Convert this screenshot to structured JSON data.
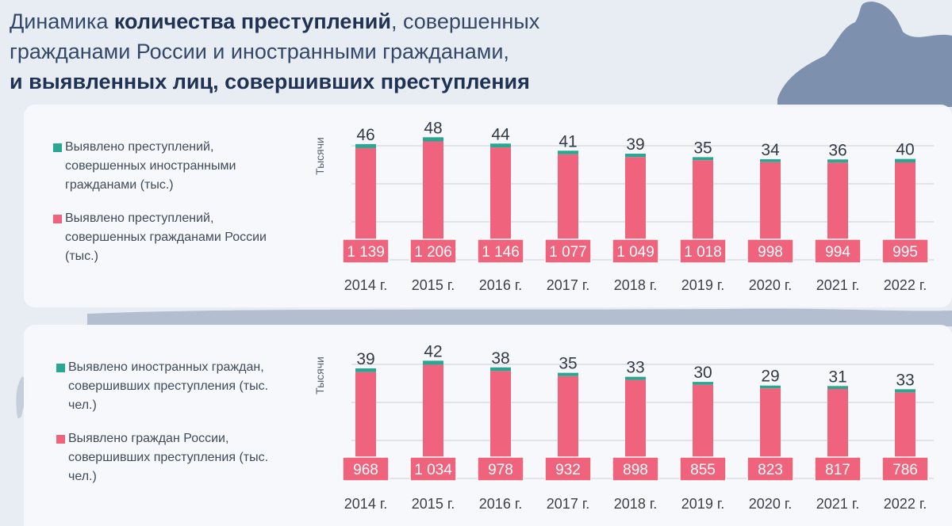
{
  "title": {
    "line1_normal": "Динамика ",
    "line1_bold": "количества преступлений",
    "line1_rest": ", совершенных",
    "line2": "гражданами России и иностранными гражданами,",
    "line3_bold": "и выявленных лиц, совершивших преступления"
  },
  "colors": {
    "foreign": "#2aa791",
    "russian": "#f0637d",
    "label_text": "#ffffff",
    "grid": "#c9cfd8"
  },
  "chart_data": [
    {
      "type": "bar",
      "stacked": true,
      "ylabel": "Тысячи",
      "categories": [
        "2014 г.",
        "2015 г.",
        "2016 г.",
        "2017 г.",
        "2018 г.",
        "2019 г.",
        "2020 г.",
        "2021 г.",
        "2022 г."
      ],
      "series": [
        {
          "name": "Выявлено преступлений, совершенных гражданами России (тыс.)",
          "values": [
            1139,
            1206,
            1146,
            1077,
            1049,
            1018,
            998,
            994,
            995
          ],
          "labels": [
            "1 139",
            "1 206",
            "1 146",
            "1 077",
            "1 049",
            "1 018",
            "998",
            "994",
            "995"
          ]
        },
        {
          "name": "Выявлено преступлений, совершенных иностранными гражданами (тыс.)",
          "values": [
            46,
            48,
            44,
            41,
            39,
            35,
            34,
            36,
            40
          ],
          "labels": [
            "46",
            "48",
            "44",
            "41",
            "39",
            "35",
            "34",
            "36",
            "40"
          ]
        }
      ],
      "legend": [
        {
          "text": "Выявлено преступлений, совершенных иностранными гражданами (тыс.)",
          "color": "#2aa791"
        },
        {
          "text": "Выявлено преступлений, совершенных гражданами России (тыс.)",
          "color": "#f0637d"
        }
      ],
      "grid": true,
      "legend_position": "left"
    },
    {
      "type": "bar",
      "stacked": true,
      "ylabel": "Тысячи",
      "categories": [
        "2014 г.",
        "2015 г.",
        "2016 г.",
        "2017 г.",
        "2018 г.",
        "2019 г.",
        "2020 г.",
        "2021 г.",
        "2022 г."
      ],
      "series": [
        {
          "name": "Выявлено граждан России, совершивших преступления (тыс. чел.)",
          "values": [
            968,
            1034,
            978,
            932,
            898,
            855,
            823,
            817,
            786
          ],
          "labels": [
            "968",
            "1 034",
            "978",
            "932",
            "898",
            "855",
            "823",
            "817",
            "786"
          ]
        },
        {
          "name": "Выявлено иностранных граждан, совершивших преступления (тыс. чел.)",
          "values": [
            39,
            42,
            38,
            35,
            33,
            30,
            29,
            31,
            33
          ],
          "labels": [
            "39",
            "42",
            "38",
            "35",
            "33",
            "30",
            "29",
            "31",
            "33"
          ]
        }
      ],
      "legend": [
        {
          "text": "Выявлено иностранных граждан, совершивших преступления (тыс. чел.)",
          "color": "#2aa791"
        },
        {
          "text": "Выявлено граждан России, совершивших преступления (тыс. чел.)",
          "color": "#f0637d"
        }
      ],
      "grid": true,
      "legend_position": "left"
    }
  ]
}
